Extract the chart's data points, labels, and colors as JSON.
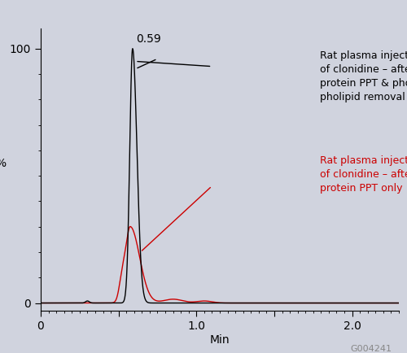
{
  "background_color": "#d0d3de",
  "plot_bg_color": "#d0d3de",
  "xlim": [
    0,
    2.3
  ],
  "ylim": [
    -3,
    108
  ],
  "xlabel": "Min",
  "ylabel": "%",
  "xtick_major": [
    0,
    0.5,
    1.0,
    1.5,
    2.0
  ],
  "xticklabels": [
    "0",
    "",
    "1.0",
    "",
    "2.0"
  ],
  "yticks": [
    0,
    100
  ],
  "yticklabels": [
    "0",
    "100"
  ],
  "peak_label": "0.59",
  "peak_x": 0.59,
  "black_line_color": "#000000",
  "red_line_color": "#cc0000",
  "black_label_line1": "Rat plasma injection",
  "black_label_line2": "of clonidine – after",
  "black_label_line3": "protein PPT & phos-",
  "black_label_line4": "pholipid removal",
  "red_label_line1": "Rat plasma injection",
  "red_label_line2": "of clonidine – after",
  "red_label_line3": "protein PPT only",
  "annotation_id": "G004241",
  "tick_fontsize": 10,
  "label_fontsize": 9,
  "annotation_fontsize": 8
}
